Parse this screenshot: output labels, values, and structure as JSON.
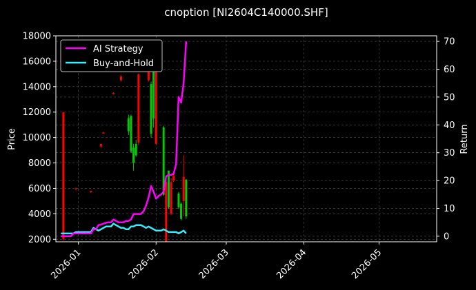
{
  "chart_data": {
    "type": "line",
    "title": "cnoption [NI2604C140000.SHF]",
    "ylabel_left": "Price",
    "ylabel_right": "Return",
    "xlim": [
      "2025-12-23",
      "2026-05-24"
    ],
    "ylim_left": [
      1800,
      18000
    ],
    "ylim_right": [
      -2,
      72
    ],
    "grid": true,
    "legend_position": "upper-left",
    "x_ticks": [
      "2026-01",
      "2026-02",
      "2026-03",
      "2026-04",
      "2026-05"
    ],
    "y_ticks_left": [
      2000,
      4000,
      6000,
      8000,
      10000,
      12000,
      14000,
      16000,
      18000
    ],
    "y_ticks_right": [
      0,
      10,
      20,
      30,
      40,
      50,
      60,
      70
    ],
    "colors": {
      "up": "#00cc00",
      "down": "#ff0000",
      "ai": "#ff00ff",
      "bh": "#33eeff",
      "grid": "#555555"
    },
    "series": [
      {
        "name": "AI Strategy",
        "axis": "right",
        "x": [
          "2025-12-25",
          "2025-12-26",
          "2025-12-27",
          "2025-12-28",
          "2025-12-29",
          "2025-12-30",
          "2025-12-31",
          "2026-01-01",
          "2026-01-02",
          "2026-01-03",
          "2026-01-04",
          "2026-01-05",
          "2026-01-06",
          "2026-01-07",
          "2026-01-08",
          "2026-01-09",
          "2026-01-10",
          "2026-01-11",
          "2026-01-12",
          "2026-01-13",
          "2026-01-14",
          "2026-01-15",
          "2026-01-16",
          "2026-01-17",
          "2026-01-18",
          "2026-01-19",
          "2026-01-20",
          "2026-01-21",
          "2026-01-22",
          "2026-01-23",
          "2026-01-24",
          "2026-01-25",
          "2026-01-26",
          "2026-01-27",
          "2026-01-28",
          "2026-01-29",
          "2026-01-30",
          "2026-01-31",
          "2026-02-01",
          "2026-02-02",
          "2026-02-03",
          "2026-02-04",
          "2026-02-05",
          "2026-02-06",
          "2026-02-07",
          "2026-02-08",
          "2026-02-09",
          "2026-02-10",
          "2026-02-11",
          "2026-02-12",
          "2026-02-13"
        ],
        "values": [
          0,
          0,
          0,
          0,
          0,
          1,
          1,
          1,
          1,
          1,
          1,
          1,
          1,
          2.5,
          2.5,
          4,
          4.2,
          4.5,
          4.8,
          5,
          5,
          6,
          5.5,
          5,
          5,
          5,
          5.5,
          5.5,
          6,
          8,
          8,
          8,
          8,
          9,
          11,
          14,
          18,
          16,
          13.5,
          14.5,
          15,
          16,
          21.5,
          22,
          22,
          22.5,
          26,
          50,
          48,
          55,
          70
        ]
      },
      {
        "name": "Buy-and-Hold",
        "axis": "right",
        "x": [
          "2025-12-25",
          "2025-12-26",
          "2025-12-27",
          "2025-12-28",
          "2025-12-29",
          "2025-12-30",
          "2025-12-31",
          "2026-01-01",
          "2026-01-02",
          "2026-01-03",
          "2026-01-04",
          "2026-01-05",
          "2026-01-06",
          "2026-01-07",
          "2026-01-08",
          "2026-01-09",
          "2026-01-10",
          "2026-01-11",
          "2026-01-12",
          "2026-01-13",
          "2026-01-14",
          "2026-01-15",
          "2026-01-16",
          "2026-01-17",
          "2026-01-18",
          "2026-01-19",
          "2026-01-20",
          "2026-01-21",
          "2026-01-22",
          "2026-01-23",
          "2026-01-24",
          "2026-01-25",
          "2026-01-26",
          "2026-01-27",
          "2026-01-28",
          "2026-01-29",
          "2026-01-30",
          "2026-01-31",
          "2026-02-01",
          "2026-02-02",
          "2026-02-03",
          "2026-02-04",
          "2026-02-05",
          "2026-02-06",
          "2026-02-07",
          "2026-02-08",
          "2026-02-09",
          "2026-02-10",
          "2026-02-11",
          "2026-02-12",
          "2026-02-13"
        ],
        "values": [
          1,
          1,
          1,
          1,
          1,
          1,
          1.5,
          1.5,
          1.5,
          1.5,
          1.5,
          1.5,
          1.5,
          3,
          2.5,
          2,
          2.5,
          3,
          3.5,
          3.5,
          3.5,
          4.5,
          4,
          3.5,
          3,
          3,
          2.5,
          2.5,
          3.5,
          3.5,
          4,
          4,
          4,
          3.5,
          3,
          3.5,
          3,
          2.5,
          2,
          2,
          2,
          2.5,
          2,
          1.5,
          1.5,
          1.5,
          1.5,
          1,
          1.5,
          2,
          1
        ]
      }
    ],
    "candles": [
      {
        "x": "2025-12-26",
        "open": 12000,
        "close": 2000,
        "high": 12000,
        "low": 1900
      },
      {
        "x": "2025-12-31",
        "open": 6000,
        "close": 5950,
        "high": 6050,
        "low": 5900
      },
      {
        "x": "2026-01-06",
        "open": 5800,
        "close": 5700,
        "high": 5800,
        "low": 5650
      },
      {
        "x": "2026-01-10",
        "open": 9500,
        "close": 9300,
        "high": 9500,
        "low": 9200
      },
      {
        "x": "2026-01-11",
        "open": 10400,
        "close": 10350,
        "high": 10450,
        "low": 10300
      },
      {
        "x": "2026-01-15",
        "open": 13500,
        "close": 13450,
        "high": 13550,
        "low": 13400
      },
      {
        "x": "2026-01-18",
        "open": 14800,
        "close": 14500,
        "high": 14900,
        "low": 14400
      },
      {
        "x": "2026-01-21",
        "open": 10500,
        "close": 11500,
        "high": 11800,
        "low": 10200
      },
      {
        "x": "2026-01-22",
        "open": 8900,
        "close": 11700,
        "high": 11800,
        "low": 8800
      },
      {
        "x": "2026-01-23",
        "open": 8000,
        "close": 9200,
        "high": 9500,
        "low": 7400
      },
      {
        "x": "2026-01-24",
        "open": 8600,
        "close": 9500,
        "high": 9800,
        "low": 8500
      },
      {
        "x": "2026-01-25",
        "open": 15000,
        "close": 9600,
        "high": 15000,
        "low": 9400
      },
      {
        "x": "2026-01-29",
        "open": 16000,
        "close": 14500,
        "high": 16200,
        "low": 14400
      },
      {
        "x": "2026-01-30",
        "open": 10300,
        "close": 14200,
        "high": 14400,
        "low": 10000
      },
      {
        "x": "2026-01-31",
        "open": 11500,
        "close": 16000,
        "high": 16200,
        "low": 10800
      },
      {
        "x": "2026-02-01",
        "open": 16000,
        "close": 9500,
        "high": 16300,
        "low": 9400
      },
      {
        "x": "2026-02-04",
        "open": 5500,
        "close": 10800,
        "high": 10900,
        "low": 5400
      },
      {
        "x": "2026-02-05",
        "open": 6500,
        "close": 1800,
        "high": 7000,
        "low": 1800
      },
      {
        "x": "2026-02-06",
        "open": 4500,
        "close": 7400,
        "high": 7400,
        "low": 4400
      },
      {
        "x": "2026-02-07",
        "open": 6500,
        "close": 4000,
        "high": 6800,
        "low": 3900
      },
      {
        "x": "2026-02-08",
        "open": 7000,
        "close": 6600,
        "high": 7100,
        "low": 6500
      },
      {
        "x": "2026-02-10",
        "open": 4500,
        "close": 5600,
        "high": 5700,
        "low": 4400
      },
      {
        "x": "2026-02-11",
        "open": 3600,
        "close": 4800,
        "high": 4900,
        "low": 3500
      },
      {
        "x": "2026-02-12",
        "open": 6900,
        "close": 5000,
        "high": 8600,
        "low": 3800
      },
      {
        "x": "2026-02-13",
        "open": 3800,
        "close": 6700,
        "high": 6700,
        "low": 3600
      }
    ]
  }
}
